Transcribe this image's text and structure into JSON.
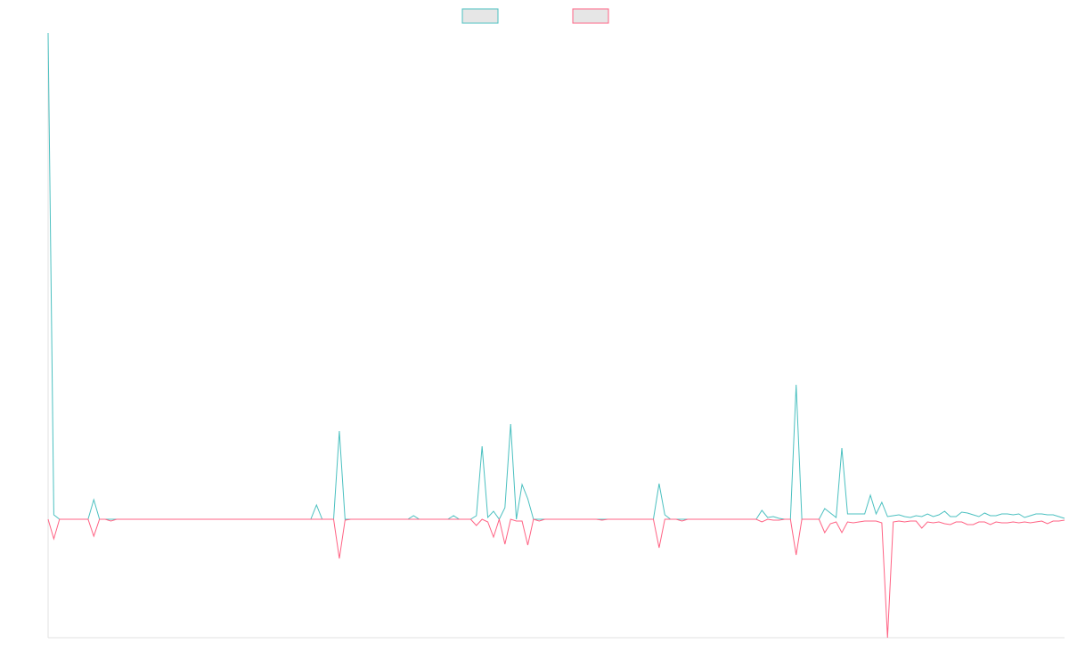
{
  "chart_data": {
    "type": "line",
    "legend": "top",
    "ylim": [
      -133,
      546
    ],
    "categories": [
      null,
      null,
      null,
      null,
      null,
      null,
      null,
      null,
      null,
      null,
      null,
      null,
      null,
      null,
      null,
      null,
      null,
      null,
      null,
      null,
      null,
      null,
      null,
      null,
      null,
      null,
      null,
      null,
      null,
      null,
      null,
      null,
      null,
      null,
      null,
      null,
      null,
      null,
      null,
      null,
      null,
      null,
      null,
      null,
      null,
      null,
      null,
      null,
      null,
      null,
      null,
      null,
      null,
      null,
      null,
      null,
      null,
      null,
      null,
      null,
      null,
      null,
      null,
      null,
      null,
      null,
      null,
      null,
      null,
      null,
      null,
      null,
      null,
      null,
      null,
      null,
      null,
      null,
      null,
      null,
      null,
      null,
      null,
      null,
      null,
      null,
      null,
      null,
      null,
      null,
      null,
      null,
      null,
      null,
      null,
      null,
      null,
      null,
      null,
      null,
      null,
      null,
      null,
      null,
      null,
      null,
      null,
      null,
      null,
      null,
      null,
      null,
      null,
      null,
      null,
      null,
      null,
      null,
      null,
      null,
      null,
      null,
      null,
      null,
      null,
      null,
      null,
      null,
      null,
      null,
      null,
      null,
      null,
      null,
      null,
      null,
      null,
      null,
      null,
      null,
      null,
      null,
      null,
      null,
      null,
      null,
      null,
      null,
      null,
      null,
      null,
      null,
      null,
      null,
      null,
      null,
      null,
      null,
      null,
      null,
      null,
      null,
      null,
      null,
      null,
      null,
      null,
      null,
      null,
      null,
      null,
      null,
      null,
      null,
      null,
      null,
      null,
      null,
      null
    ],
    "series": [
      {
        "color": "#4bc0c0",
        "values": [
          546,
          5,
          0,
          0,
          0,
          0,
          0,
          0,
          22,
          0,
          0,
          0,
          0,
          0,
          0,
          0,
          0,
          0,
          0,
          0,
          0,
          0,
          0,
          0,
          0,
          0,
          0,
          0,
          0,
          0,
          0,
          0,
          0,
          0,
          0,
          0,
          0,
          0,
          0,
          0,
          0,
          0,
          0,
          0,
          0,
          0,
          0,
          16,
          0,
          0,
          0,
          99,
          0,
          0,
          0,
          0,
          0,
          0,
          0,
          0,
          0,
          0,
          0,
          0,
          4,
          0,
          0,
          0,
          0,
          0,
          0,
          4,
          0,
          0,
          0,
          4,
          82,
          2,
          9,
          0,
          13,
          107,
          0,
          39,
          23,
          0,
          0,
          0,
          0,
          0,
          0,
          0,
          0,
          0,
          0,
          0,
          0,
          0,
          0,
          0,
          0,
          0,
          0,
          0,
          0,
          0,
          0,
          40,
          5,
          0,
          0,
          0,
          0,
          0,
          0,
          0,
          0,
          0,
          0,
          0,
          0,
          0,
          0,
          0,
          0,
          10,
          2,
          3,
          1,
          0,
          0,
          151,
          0,
          0,
          0,
          0,
          12,
          7,
          2,
          80,
          6,
          6,
          6,
          6,
          27,
          6,
          19,
          3,
          4,
          5,
          3,
          2,
          4,
          3,
          6,
          3,
          5,
          9,
          3,
          3,
          8,
          7,
          5,
          3,
          7,
          4,
          4,
          6,
          6,
          5,
          6,
          2,
          4,
          6,
          6,
          5,
          5,
          3,
          1
        ]
      },
      {
        "color": "#ff6384",
        "values": [
          0,
          -22,
          0,
          0,
          0,
          0,
          0,
          0,
          -19,
          0,
          0,
          -2,
          0,
          0,
          0,
          0,
          0,
          0,
          0,
          0,
          0,
          0,
          0,
          0,
          0,
          0,
          0,
          0,
          0,
          0,
          0,
          0,
          0,
          0,
          0,
          0,
          0,
          0,
          0,
          0,
          0,
          0,
          0,
          0,
          0,
          0,
          0,
          0,
          0,
          0,
          0,
          -44,
          -1,
          0,
          0,
          0,
          0,
          0,
          0,
          0,
          0,
          0,
          0,
          0,
          0,
          0,
          0,
          0,
          0,
          0,
          0,
          0,
          0,
          0,
          0,
          -7,
          0,
          -3,
          -20,
          0,
          -28,
          0,
          -2,
          -2,
          -29,
          0,
          -2,
          0,
          0,
          0,
          0,
          0,
          0,
          0,
          0,
          0,
          0,
          -1,
          0,
          0,
          0,
          0,
          0,
          0,
          0,
          0,
          0,
          -32,
          0,
          0,
          0,
          -2,
          0,
          0,
          0,
          0,
          0,
          0,
          0,
          0,
          0,
          0,
          0,
          0,
          0,
          -3,
          0,
          -1,
          -1,
          0,
          0,
          -40,
          0,
          0,
          0,
          0,
          -15,
          -5,
          -3,
          -15,
          -3,
          -4,
          -3,
          -2,
          -2,
          -2,
          -4,
          -133,
          -3,
          -2,
          -3,
          -2,
          -2,
          -10,
          -3,
          -4,
          -3,
          -5,
          -6,
          -3,
          -3,
          -6,
          -6,
          -3,
          -3,
          -6,
          -3,
          -4,
          -4,
          -3,
          -4,
          -3,
          -4,
          -3,
          -2,
          -5,
          -2,
          -2,
          -1
        ]
      }
    ]
  }
}
